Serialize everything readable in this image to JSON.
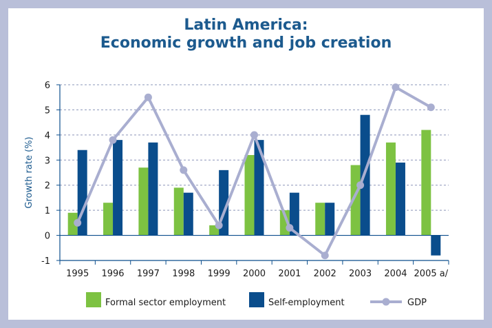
{
  "chart_data": {
    "type": "bar",
    "title": "Latin America:",
    "subtitle": "Economic growth and job creation",
    "xlabel": "",
    "ylabel": "Growth rate (%)",
    "ylim": [
      -1,
      6
    ],
    "yticks": [
      "6",
      "5",
      "4",
      "3",
      "2",
      "1",
      "0",
      "-1"
    ],
    "ytick_values": [
      6,
      5,
      4,
      3,
      2,
      1,
      0,
      -1
    ],
    "categories": [
      "1995",
      "1996",
      "1997",
      "1998",
      "1999",
      "2000",
      "2001",
      "2002",
      "2003",
      "2004",
      "2005 a/"
    ],
    "series": [
      {
        "name": "Formal sector employment",
        "type": "bar",
        "color": "#7dc242",
        "values": [
          0.9,
          1.3,
          2.7,
          1.9,
          0.4,
          3.2,
          1.0,
          1.3,
          2.8,
          3.7,
          4.2
        ]
      },
      {
        "name": "Self-employment",
        "type": "bar",
        "color": "#0a4d8c",
        "values": [
          3.4,
          3.8,
          3.7,
          1.7,
          2.6,
          3.8,
          1.7,
          1.3,
          4.8,
          2.9,
          -0.8
        ]
      },
      {
        "name": "GDP",
        "type": "line",
        "color": "#a9aed0",
        "values": [
          0.5,
          3.8,
          5.5,
          2.6,
          0.4,
          4.0,
          0.3,
          -0.8,
          2.0,
          5.9,
          5.1
        ]
      }
    ],
    "legend_position": "bottom",
    "grid": "horizontal dashed"
  }
}
